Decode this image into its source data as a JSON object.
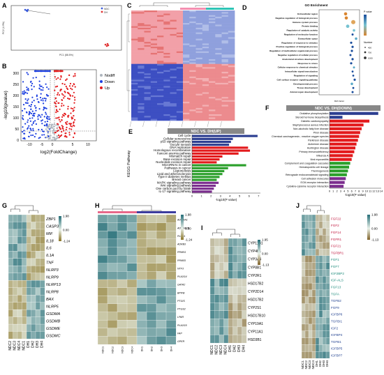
{
  "panels": {
    "A": {
      "label": "A",
      "legend": [
        "NDC",
        "DH"
      ],
      "xlabel": "PC1 (88.5%)",
      "ylabel": "PC2 (4.9%)",
      "colors": {
        "NDC": "#3b5bdb",
        "DH": "#e03131"
      }
    },
    "B": {
      "label": "B",
      "legend": [
        "Nodiff",
        "Down",
        "Up"
      ],
      "xlabel": "log2(FoldChange)",
      "ylabel": "-log10(pvalue)",
      "xticks": [
        "-10",
        "-5",
        "0",
        "5",
        "10"
      ],
      "yticks": [
        "0",
        "50",
        "100",
        "150",
        "200",
        "250",
        "300"
      ],
      "colors": {
        "Nodiff": "#adb5bd",
        "Down": "#1c3fe0",
        "Up": "#e31a1c"
      }
    },
    "C": {
      "label": "C"
    },
    "D": {
      "label": "D",
      "title": "GO Enrichment",
      "terms": [
        "Extracellular region",
        "Negative regulation of biological process",
        "Immune system process",
        "Protein binding",
        "Regulation of catalytic activity",
        "Regulation of molecular function",
        "Extracellular space",
        "Regulation of response to stimulus",
        "Positive regulation of biological process",
        "Regulation of multicellular organismal process",
        "Negative regulation of cellular process",
        "Anatomical structure development",
        "Response to stress",
        "Cellular response to chemical stimulus",
        "Intracellular signal transduction",
        "Regulation of signaling",
        "Cell surface receptor signaling pathway",
        "Developmental process",
        "Tissue development",
        "Animal organ development"
      ],
      "xlabel": "Rich factor",
      "legend_p": "P value",
      "legend_number": "Number",
      "number_values": [
        "400",
        "700",
        "1000"
      ]
    },
    "E": {
      "label": "E",
      "title": "NDC VS. DH(UP)",
      "ylabel": "KEGG Pathway",
      "xlabel": "-log10(P value)",
      "xticks": [
        "0",
        "1",
        "2",
        "3",
        "4",
        "5",
        "6",
        "7"
      ],
      "pathways": [
        {
          "name": "Cell cycle",
          "value": 6.9,
          "color": "#2c3e91"
        },
        {
          "name": "Cellular senescence",
          "value": 4.3,
          "color": "#2c3e91"
        },
        {
          "name": "p53 signaling pathway",
          "value": 4.1,
          "color": "#2c3e91"
        },
        {
          "name": "Oocyte meiosis",
          "value": 3.9,
          "color": "#2c3e91"
        },
        {
          "name": "DNA replication",
          "value": 5.9,
          "color": "#e31a1c"
        },
        {
          "name": "Homologous recombination",
          "value": 6.1,
          "color": "#e31a1c"
        },
        {
          "name": "Fanconi anemia pathway",
          "value": 4.9,
          "color": "#e31a1c"
        },
        {
          "name": "Mismatch repair",
          "value": 3.2,
          "color": "#e31a1c"
        },
        {
          "name": "Base excision repair",
          "value": 2.9,
          "color": "#e31a1c"
        },
        {
          "name": "Nucleotide excision repair",
          "value": 2.6,
          "color": "#e31a1c"
        },
        {
          "name": "MicroRNAs in cancer",
          "value": 5.7,
          "color": "#2ca02c"
        },
        {
          "name": "Pathways in cancer",
          "value": 3.8,
          "color": "#2ca02c"
        },
        {
          "name": "Legionellosis",
          "value": 3.4,
          "color": "#2ca02c"
        },
        {
          "name": "Lipid and atherosclerosis",
          "value": 3.2,
          "color": "#2ca02c"
        },
        {
          "name": "Type II diabetes mellitus",
          "value": 2.9,
          "color": "#2ca02c"
        },
        {
          "name": "Breast cancer",
          "value": 2.6,
          "color": "#2ca02c"
        },
        {
          "name": "MAPK signaling pathway",
          "value": 2.8,
          "color": "#7b2d8e"
        },
        {
          "name": "Wnt signaling pathway",
          "value": 2.5,
          "color": "#7b2d8e"
        },
        {
          "name": "One carbon pool by folate",
          "value": 2.3,
          "color": "#7b2d8e"
        },
        {
          "name": "IL-17 signaling pathway",
          "value": 2.1,
          "color": "#7b2d8e"
        }
      ]
    },
    "F": {
      "label": "F",
      "title": "NDC VS. DH(DOWN)",
      "xlabel": "-log10(P value)",
      "xticks": [
        "0",
        "1",
        "2",
        "3",
        "4",
        "5",
        "6",
        "7",
        "8",
        "9",
        "10",
        "11",
        "12",
        "13",
        "14"
      ],
      "pathways": [
        {
          "name": "Oxidative phosphorylation",
          "value": 13.2,
          "color": "#2c3e91"
        },
        {
          "name": "Steroid hormone biosynthesis",
          "value": 3.5,
          "color": "#2c3e91"
        },
        {
          "name": "Diabetic cardiomyopathy",
          "value": 10.8,
          "color": "#e31a1c"
        },
        {
          "name": "Staphylococcus aureus infection",
          "value": 9.2,
          "color": "#e31a1c"
        },
        {
          "name": "Non-alcoholic fatty liver disease",
          "value": 8.7,
          "color": "#e31a1c"
        },
        {
          "name": "Prion disease",
          "value": 8.3,
          "color": "#e31a1c"
        },
        {
          "name": "Chemical carcinogenesis - reactive oxygen species",
          "value": 8.0,
          "color": "#e31a1c"
        },
        {
          "name": "Parkinson disease",
          "value": 7.7,
          "color": "#e31a1c"
        },
        {
          "name": "Alzheimer disease",
          "value": 7.3,
          "color": "#e31a1c"
        },
        {
          "name": "Huntington disease",
          "value": 7.0,
          "color": "#e31a1c"
        },
        {
          "name": "Primary immunodeficiency",
          "value": 6.7,
          "color": "#e31a1c"
        },
        {
          "name": "Influenza A",
          "value": 6.3,
          "color": "#e31a1c"
        },
        {
          "name": "Viral myocarditis",
          "value": 6.0,
          "color": "#e31a1c"
        },
        {
          "name": "Complement and coagulation cascades",
          "value": 5.6,
          "color": "#2ca02c"
        },
        {
          "name": "Hematopoietic cell lineage",
          "value": 5.3,
          "color": "#2ca02c"
        },
        {
          "name": "Thermogenesis",
          "value": 5.0,
          "color": "#2ca02c"
        },
        {
          "name": "Retrograde endocannabinoid signaling",
          "value": 4.7,
          "color": "#2ca02c"
        },
        {
          "name": "Cell adhesion molecules",
          "value": 4.4,
          "color": "#7b2d8e"
        },
        {
          "name": "ECM-receptor interaction",
          "value": 4.1,
          "color": "#7b2d8e"
        },
        {
          "name": "Cytokine-cytokine receptor interaction",
          "value": 3.8,
          "color": "#7b2d8e"
        }
      ]
    },
    "G": {
      "label": "G",
      "genes": [
        "ZBP1",
        "CASP3",
        "MIF",
        "IL18",
        "IL6",
        "IL1A",
        "TNF",
        "NLRP3",
        "NLRP9",
        "NLRP13",
        "NLRP8",
        "BAX",
        "NLRP5",
        "GSDMA",
        "GSDMB",
        "GSDME",
        "GSDMC"
      ],
      "samples": [
        "NDC2",
        "NDC3",
        "NDC4",
        "NDC1",
        "DH1",
        "DH2",
        "DH3",
        "DH4"
      ],
      "scale": [
        "1.98",
        "0.00",
        "-1.24"
      ]
    },
    "H": {
      "label": "H",
      "genes": [
        "ADORA1",
        "ADORA2B",
        "PLCB1",
        "ADRB3",
        "PPARG",
        "PPARD",
        "NTF3",
        "PLA2G4",
        "GATA2",
        "BPIFB",
        "PTGIS",
        "PTGS2",
        "LPAR",
        "PLA2G5",
        "FAP",
        "GPER"
      ],
      "scale": [
        "1.98",
        "0.00",
        "-1.24"
      ],
      "samples": [
        "NDC1",
        "NDC2",
        "NDC3",
        "NDC4",
        "DH1",
        "DH2",
        "DH3",
        "DH4"
      ]
    },
    "I": {
      "label": "I",
      "genes": [
        "CYP11B1",
        "CYP4B1",
        "CYP3A4",
        "CYP8B1",
        "CYP2R1",
        "HSD17B2",
        "CYP2D14",
        "HSD17B2",
        "CYP2S1",
        "HSD17B10",
        "CYP19A1",
        "CYP11A1",
        "HSD3B1"
      ],
      "samples": [
        "NDC1",
        "NDC2",
        "NDC3",
        "NDC4",
        "DH1",
        "DH2",
        "DH3",
        "DH4"
      ],
      "scale": [
        "1.95",
        "0.00",
        "-1.13"
      ]
    },
    "J": {
      "label": "J",
      "genes": [
        "FGF22",
        "FGF2",
        "FGF14",
        "FGFR1",
        "FGF21",
        "TGFBR1",
        "FGF1",
        "FGF7",
        "IGF2BP2",
        "IGF-ALS",
        "FGF13",
        "TGFA",
        "TGFB2",
        "FGF9",
        "IGFBP6",
        "TGFBI1",
        "IGF2",
        "IGFBP4",
        "TGFB1",
        "IGFBP5",
        "IGFBP7"
      ],
      "samples": [
        "NDC1",
        "NDC2",
        "NDC3",
        "NDC4",
        "DH1",
        "DH2",
        "DH3",
        "DH4"
      ],
      "scale": [
        "1.98",
        "0.00",
        "-1.13"
      ]
    }
  }
}
